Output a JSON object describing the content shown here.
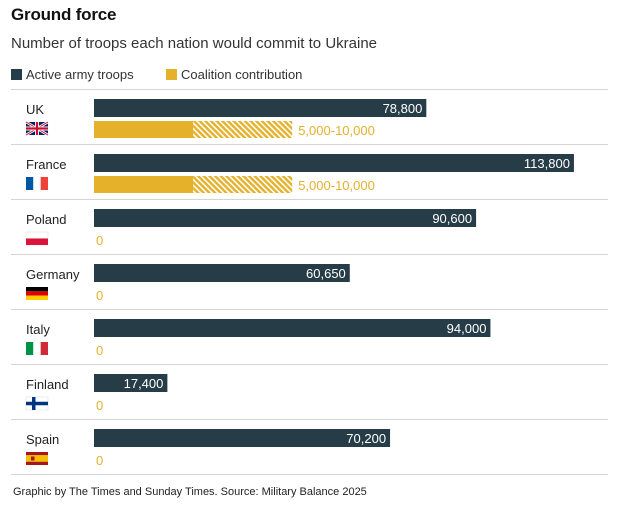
{
  "title": "Ground force",
  "subtitle": "Number of troops each nation would commit to Ukraine",
  "legend": {
    "active": {
      "label": "Active army troops",
      "color": "#263d48"
    },
    "coalition": {
      "label": "Coalition contribution",
      "color": "#e5b12b"
    }
  },
  "footnote": "Graphic by The Times and Sunday Times. Source: Military Balance 2025",
  "chart_data": {
    "type": "bar",
    "orientation": "horizontal",
    "title": "Ground force",
    "subtitle": "Number of troops each nation would commit to Ukraine",
    "categories": [
      "UK",
      "France",
      "Poland",
      "Germany",
      "Italy",
      "Finland",
      "Spain"
    ],
    "series": [
      {
        "name": "Active army troops",
        "color": "#263d48",
        "values": [
          78800,
          113800,
          90600,
          60650,
          94000,
          17400,
          70200
        ],
        "labels": [
          "78,800",
          "113,800",
          "90,600",
          "60,650",
          "94,000",
          "17,400",
          "70,200"
        ]
      },
      {
        "name": "Coalition contribution",
        "color": "#e5b12b",
        "values_min": [
          5000,
          5000,
          0,
          0,
          0,
          0,
          0
        ],
        "values_max": [
          10000,
          10000,
          0,
          0,
          0,
          0,
          0
        ],
        "labels": [
          "5,000-10,000",
          "5,000-10,000",
          "0",
          "0",
          "0",
          "0",
          "0"
        ]
      }
    ],
    "flags": [
      "uk-flag-icon",
      "france-flag-icon",
      "poland-flag-icon",
      "germany-flag-icon",
      "italy-flag-icon",
      "finland-flag-icon",
      "spain-flag-icon"
    ],
    "xlim": [
      0,
      115000
    ],
    "grid": false,
    "legend_position": "top-left"
  }
}
